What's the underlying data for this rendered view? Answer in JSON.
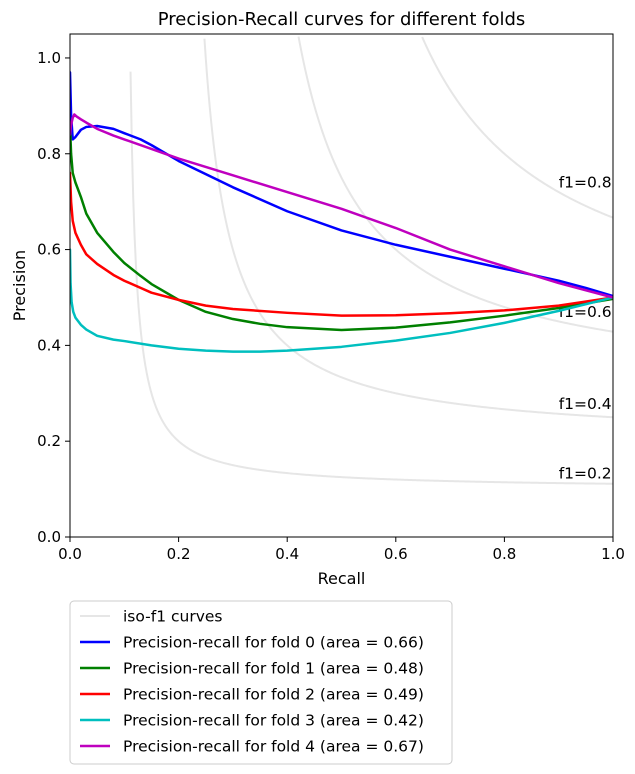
{
  "chart_data": {
    "type": "line",
    "title": "Precision-Recall curves for different folds",
    "xlabel": "Recall",
    "ylabel": "Precision",
    "xlim": [
      0.0,
      1.0
    ],
    "ylim": [
      0.0,
      1.05
    ],
    "xticks": [
      "0.0",
      "0.2",
      "0.4",
      "0.6",
      "0.8",
      "1.0"
    ],
    "yticks": [
      "0.0",
      "0.2",
      "0.4",
      "0.6",
      "0.8",
      "1.0"
    ],
    "grid": false,
    "legend_position": "below plot, left",
    "iso_f1": {
      "legend_label": "iso-f1 curves",
      "color": "#e6e6e6",
      "levels": [
        {
          "f1": 0.2,
          "label": "f1=0.2"
        },
        {
          "f1": 0.4,
          "label": "f1=0.4"
        },
        {
          "f1": 0.6,
          "label": "f1=0.6"
        },
        {
          "f1": 0.8,
          "label": "f1=0.8"
        }
      ]
    },
    "series": [
      {
        "name": "Precision-recall for fold 0 (area = 0.66)",
        "color": "#0000ff",
        "x": [
          0.0,
          0.002,
          0.005,
          0.01,
          0.02,
          0.03,
          0.05,
          0.08,
          0.1,
          0.13,
          0.15,
          0.2,
          0.3,
          0.4,
          0.5,
          0.6,
          0.7,
          0.8,
          0.9,
          0.95,
          1.0
        ],
        "y": [
          0.97,
          0.88,
          0.83,
          0.835,
          0.85,
          0.856,
          0.858,
          0.852,
          0.843,
          0.83,
          0.818,
          0.785,
          0.73,
          0.68,
          0.64,
          0.61,
          0.585,
          0.56,
          0.535,
          0.52,
          0.503
        ]
      },
      {
        "name": "Precision-recall for fold 1 (area = 0.48)",
        "color": "#008000",
        "x": [
          0.0,
          0.002,
          0.005,
          0.01,
          0.02,
          0.03,
          0.05,
          0.08,
          0.1,
          0.13,
          0.15,
          0.2,
          0.25,
          0.3,
          0.35,
          0.4,
          0.5,
          0.6,
          0.7,
          0.8,
          0.9,
          1.0
        ],
        "y": [
          0.86,
          0.8,
          0.76,
          0.74,
          0.71,
          0.675,
          0.635,
          0.595,
          0.572,
          0.545,
          0.528,
          0.495,
          0.47,
          0.455,
          0.445,
          0.438,
          0.432,
          0.437,
          0.448,
          0.462,
          0.478,
          0.497
        ]
      },
      {
        "name": "Precision-recall for fold 2 (area = 0.49)",
        "color": "#ff0000",
        "x": [
          0.0,
          0.002,
          0.005,
          0.01,
          0.02,
          0.03,
          0.05,
          0.08,
          0.1,
          0.13,
          0.15,
          0.2,
          0.25,
          0.3,
          0.4,
          0.5,
          0.6,
          0.7,
          0.8,
          0.9,
          1.0
        ],
        "y": [
          0.76,
          0.7,
          0.66,
          0.635,
          0.61,
          0.59,
          0.57,
          0.547,
          0.535,
          0.52,
          0.51,
          0.495,
          0.483,
          0.476,
          0.468,
          0.462,
          0.463,
          0.467,
          0.473,
          0.483,
          0.5
        ]
      },
      {
        "name": "Precision-recall for fold 3 (area = 0.42)",
        "color": "#00bfbf",
        "x": [
          0.0,
          0.001,
          0.003,
          0.006,
          0.01,
          0.02,
          0.03,
          0.05,
          0.08,
          0.1,
          0.15,
          0.2,
          0.25,
          0.3,
          0.35,
          0.4,
          0.5,
          0.6,
          0.7,
          0.8,
          0.9,
          1.0
        ],
        "y": [
          0.6,
          0.53,
          0.49,
          0.47,
          0.458,
          0.443,
          0.433,
          0.42,
          0.412,
          0.409,
          0.4,
          0.393,
          0.389,
          0.387,
          0.387,
          0.389,
          0.397,
          0.41,
          0.426,
          0.447,
          0.472,
          0.5
        ]
      },
      {
        "name": "Precision-recall for fold 4 (area = 0.67)",
        "color": "#bf00bf",
        "x": [
          0.0,
          0.002,
          0.005,
          0.008,
          0.012,
          0.02,
          0.03,
          0.05,
          0.08,
          0.1,
          0.15,
          0.2,
          0.3,
          0.4,
          0.5,
          0.6,
          0.7,
          0.8,
          0.9,
          1.0
        ],
        "y": [
          0.84,
          0.86,
          0.875,
          0.882,
          0.878,
          0.872,
          0.865,
          0.852,
          0.838,
          0.83,
          0.81,
          0.79,
          0.755,
          0.72,
          0.685,
          0.645,
          0.6,
          0.565,
          0.53,
          0.5
        ]
      }
    ]
  }
}
